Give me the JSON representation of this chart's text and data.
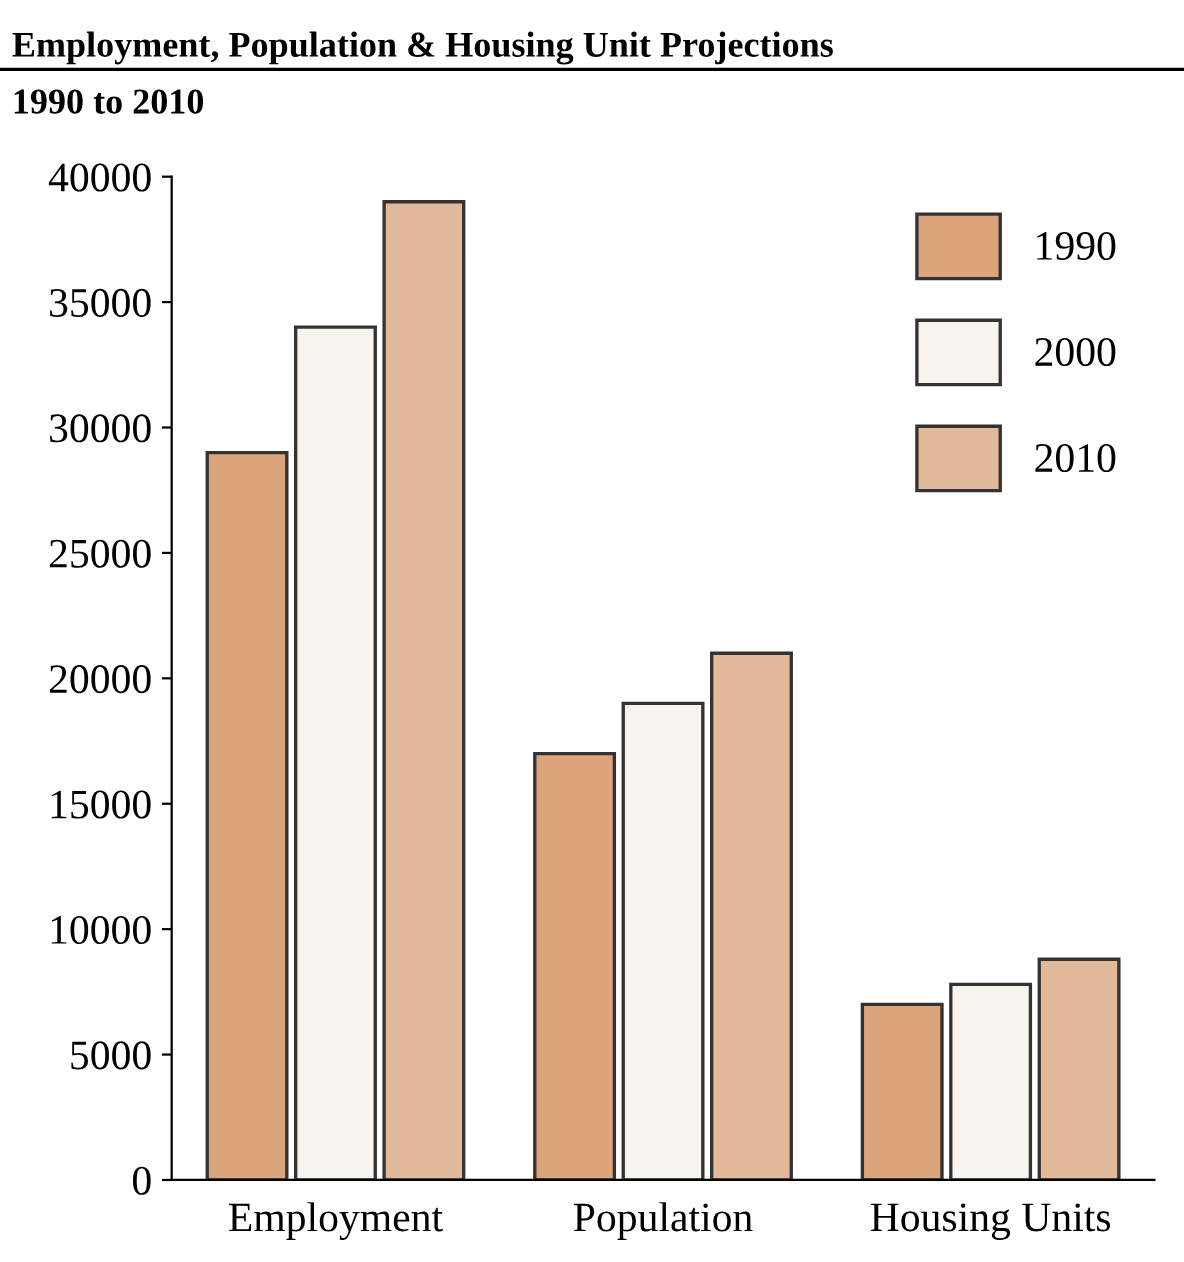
{
  "chart_data": {
    "type": "bar",
    "title": "Employment, Population & Housing Unit Projections",
    "subtitle": "1990 to 2010",
    "categories": [
      "Employment",
      "Population",
      "Housing Units"
    ],
    "series": [
      {
        "name": "1990",
        "color": "#dba47a",
        "values": [
          29000,
          17000,
          7000
        ]
      },
      {
        "name": "2000",
        "color": "#f7f4ef",
        "values": [
          34000,
          19000,
          7800
        ]
      },
      {
        "name": "2010",
        "color": "#e2b999",
        "values": [
          39000,
          21000,
          8800
        ]
      }
    ],
    "ylim": [
      0,
      40000
    ],
    "yticks": [
      0,
      5000,
      10000,
      15000,
      20000,
      25000,
      30000,
      35000,
      40000
    ],
    "grid": false,
    "legend": "top right"
  }
}
